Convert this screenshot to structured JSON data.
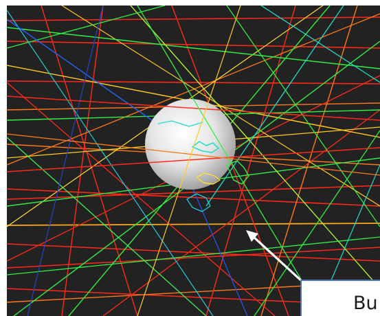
{
  "callout": {
    "label": "Bu"
  },
  "scene": {
    "description_icon": "earth-globe",
    "background": "#222222",
    "globe_color": "#e8e8e8",
    "arrow_color": "#ffffff",
    "callout_border": "#4a78b4",
    "track_colors": [
      "#ff2a1a",
      "#ff7a1a",
      "#ffcc22",
      "#33ee44",
      "#22ddcc",
      "#2266ff",
      "#bbff33"
    ]
  }
}
